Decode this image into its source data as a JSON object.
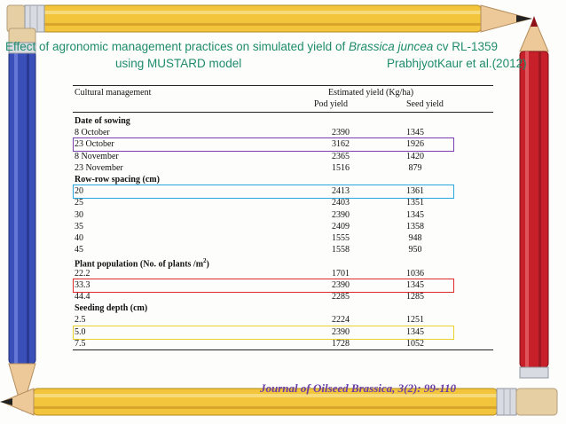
{
  "title": {
    "line1_pre": "Effect of agronomic management practices on simulated yield of ",
    "line1_species": "Brassica juncea",
    "line1_post": " cv RL-1359",
    "line2_left": "using MUSTARD model",
    "line2_right": "PrabhjyotKaur et al.(2012)"
  },
  "table": {
    "col_header_1": "Cultural management",
    "col_header_group": "Estimated yield (Kg/ha)",
    "col_header_2": "Pod yield",
    "col_header_3": "Seed yield",
    "rows": [
      {
        "label": "Date of sowing",
        "pod": "",
        "seed": "",
        "section": true
      },
      {
        "label": "8 October",
        "pod": "2390",
        "seed": "1345"
      },
      {
        "label": "23 October",
        "pod": "3162",
        "seed": "1926"
      },
      {
        "label": "8 November",
        "pod": "2365",
        "seed": "1420"
      },
      {
        "label": "23 November",
        "pod": "1516",
        "seed": "879"
      },
      {
        "label": "Row-row spacing  (cm)",
        "pod": "",
        "seed": "",
        "section": true
      },
      {
        "label": "20",
        "pod": "2413",
        "seed": "1361"
      },
      {
        "label": "25",
        "pod": "2403",
        "seed": "1351"
      },
      {
        "label": "30",
        "pod": "2390",
        "seed": "1345"
      },
      {
        "label": "35",
        "pod": "2409",
        "seed": "1358"
      },
      {
        "label": "40",
        "pod": "1555",
        "seed": "948"
      },
      {
        "label": "45",
        "pod": "1558",
        "seed": "950"
      },
      {
        "label": "Plant population (No. of plants /m",
        "sup": "2",
        "label_post": ")",
        "pod": "",
        "seed": "",
        "section": true
      },
      {
        "label": "22.2",
        "pod": "1701",
        "seed": "1036"
      },
      {
        "label": "33.3",
        "pod": "2390",
        "seed": "1345"
      },
      {
        "label": "44.4",
        "pod": "2285",
        "seed": "1285"
      },
      {
        "label": "Seeding depth  (cm)",
        "pod": "",
        "seed": "",
        "section": true
      },
      {
        "label": "2.5",
        "pod": "2224",
        "seed": "1251"
      },
      {
        "label": "5.0",
        "pod": "2390",
        "seed": "1345"
      },
      {
        "label": "7.5",
        "pod": "1728",
        "seed": "1052"
      }
    ]
  },
  "highlights": [
    {
      "row": "23 October",
      "color": "#7a3fb0"
    },
    {
      "row": "20",
      "color": "#2aa7e0"
    },
    {
      "row": "33.3",
      "color": "#e02a2a"
    },
    {
      "row": "5.0",
      "color": "#e8d12a"
    }
  ],
  "citation": "Journal of Oilseed Brassica, 3(2): 99-110",
  "colors": {
    "title": "#1e8c6b",
    "pencil_yellow": "#f2c53d",
    "pencil_blue": "#3a4fb8",
    "pencil_red": "#c8202a",
    "citation": "#6b3fa6"
  }
}
